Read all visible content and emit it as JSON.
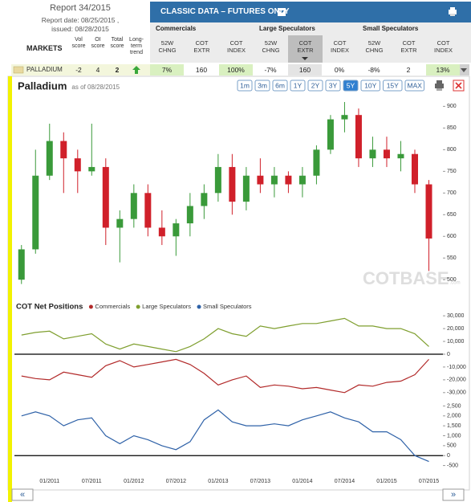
{
  "report": {
    "title": "Report 34/2015",
    "date": "Report date: 08/25/2015 ,",
    "issued": "issued: 08/28/2015"
  },
  "header": {
    "title": "CLASSIC DATA – FUTURES ONLY"
  },
  "table": {
    "markets_label": "MARKETS",
    "score_columns": [
      "Vol score",
      "OI score",
      "Total score",
      "Long-term trend"
    ],
    "groups": [
      {
        "name": "Commercials",
        "columns": [
          "52W CHNG",
          "COT EXTR",
          "COT INDEX"
        ]
      },
      {
        "name": "Large Speculators",
        "columns": [
          "52W CHNG",
          "COT EXTR",
          "COT INDEX"
        ]
      },
      {
        "name": "Small Speculators",
        "columns": [
          "52W CHNG",
          "COT EXTR",
          "COT INDEX"
        ]
      }
    ],
    "row": {
      "market": "PALLADIUM",
      "scores": [
        -2,
        4,
        2
      ],
      "values": [
        "7%",
        "160",
        "100%",
        "-7%",
        "160",
        "0%",
        "-8%",
        "2",
        "13%"
      ],
      "cell_colors": [
        "#d9f0c0",
        "#ffffff",
        "#d9f0c0",
        "#ffffff",
        "#e4e4e4",
        "#ffffff",
        "#ffffff",
        "#ffffff",
        "#d9f0c0"
      ]
    }
  },
  "chart_panel": {
    "title": "Palladium",
    "subtitle": "as of 08/28/2015",
    "ranges": [
      "1m",
      "3m",
      "6m",
      "1Y",
      "2Y",
      "3Y",
      "5Y",
      "10Y",
      "15Y",
      "MAX"
    ],
    "active_range": "5Y",
    "watermark": "COTBASE",
    "watermark_suffix": ".com"
  },
  "footer": {
    "prev": "«",
    "next": "»"
  },
  "chart_data": [
    {
      "type": "candlestick",
      "x": [
        "09/2010",
        "11/2010",
        "01/2011",
        "03/2011",
        "05/2011",
        "07/2011",
        "09/2011",
        "11/2011",
        "01/2012",
        "03/2012",
        "05/2012",
        "07/2012",
        "09/2012",
        "11/2012",
        "01/2013",
        "03/2013",
        "05/2013",
        "07/2013",
        "09/2013",
        "11/2013",
        "01/2014",
        "03/2014",
        "05/2014",
        "07/2014",
        "09/2014",
        "11/2014",
        "01/2015",
        "03/2015",
        "05/2015",
        "07/2015"
      ],
      "open": [
        500,
        570,
        740,
        820,
        780,
        750,
        760,
        620,
        640,
        700,
        620,
        600,
        630,
        670,
        700,
        760,
        680,
        740,
        720,
        740,
        720,
        740,
        800,
        870,
        880,
        780,
        800,
        780,
        790,
        720
      ],
      "high": [
        580,
        800,
        860,
        840,
        800,
        860,
        780,
        660,
        720,
        720,
        660,
        640,
        700,
        720,
        790,
        790,
        760,
        780,
        760,
        750,
        760,
        810,
        880,
        910,
        895,
        830,
        830,
        820,
        800,
        730
      ],
      "low": [
        490,
        560,
        730,
        700,
        700,
        740,
        580,
        540,
        620,
        600,
        580,
        555,
        600,
        640,
        680,
        650,
        660,
        700,
        690,
        700,
        690,
        720,
        790,
        840,
        760,
        760,
        760,
        750,
        700,
        520
      ],
      "close": [
        570,
        740,
        820,
        780,
        750,
        760,
        620,
        640,
        700,
        620,
        600,
        630,
        670,
        700,
        760,
        680,
        740,
        720,
        740,
        720,
        740,
        800,
        870,
        880,
        780,
        800,
        780,
        790,
        720,
        595
      ],
      "up_color": "#3a9a3a",
      "down_color": "#d0202a",
      "xlim": [
        "08/2010",
        "09/2015"
      ],
      "ylim": [
        480,
        910
      ],
      "yticks": [
        500,
        550,
        600,
        650,
        700,
        750,
        800,
        850,
        900
      ]
    },
    {
      "type": "line",
      "title": "COT Net Positions",
      "x": [
        "09/2010",
        "11/2010",
        "01/2011",
        "03/2011",
        "05/2011",
        "07/2011",
        "09/2011",
        "11/2011",
        "01/2012",
        "03/2012",
        "05/2012",
        "07/2012",
        "09/2012",
        "11/2012",
        "01/2013",
        "03/2013",
        "05/2013",
        "07/2013",
        "09/2013",
        "11/2013",
        "01/2014",
        "03/2014",
        "05/2014",
        "07/2014",
        "09/2014",
        "11/2014",
        "01/2015",
        "03/2015",
        "05/2015",
        "07/2015"
      ],
      "series": [
        {
          "name": "Commercials",
          "color": "#b22a2a",
          "axis": "y",
          "values": [
            -17000,
            -19000,
            -20000,
            -14000,
            -16000,
            -18000,
            -9000,
            -5000,
            -10000,
            -8000,
            -6000,
            -4000,
            -8000,
            -15000,
            -24000,
            -20000,
            -17000,
            -26000,
            -24000,
            -25000,
            -27000,
            -26000,
            -28000,
            -30000,
            -24000,
            -25000,
            -22000,
            -21000,
            -16000,
            -4000
          ]
        },
        {
          "name": "Large Speculators",
          "color": "#7f9f2f",
          "axis": "y",
          "values": [
            15000,
            17000,
            18000,
            12000,
            14000,
            16000,
            8000,
            4000,
            8000,
            6000,
            4000,
            2000,
            6000,
            12000,
            20000,
            16000,
            14000,
            22000,
            20000,
            22000,
            24000,
            24000,
            26000,
            28000,
            22000,
            22000,
            20000,
            20000,
            16000,
            6000
          ]
        },
        {
          "name": "Small Speculators",
          "color": "#2f62a8",
          "axis": "y2",
          "values": [
            2000,
            2200,
            2000,
            1500,
            1800,
            1900,
            1000,
            600,
            1000,
            800,
            500,
            300,
            700,
            1800,
            2300,
            1700,
            1500,
            1500,
            1600,
            1500,
            1800,
            2000,
            2200,
            1900,
            1700,
            1200,
            1200,
            800,
            0,
            -300
          ]
        }
      ],
      "xlim": [
        "08/2010",
        "09/2015"
      ],
      "xticks": [
        "01/2011",
        "07/2011",
        "01/2012",
        "07/2012",
        "01/2013",
        "07/2013",
        "01/2014",
        "07/2014",
        "01/2015",
        "07/2015"
      ],
      "ylim": [
        -32000,
        32000
      ],
      "yticks": [
        {
          "value": 30000,
          "label": "30,000"
        },
        {
          "value": 20000,
          "label": "20,000"
        },
        {
          "value": 10000,
          "label": "10,000"
        },
        0,
        {
          "value": -10000,
          "label": "-10,000"
        },
        {
          "value": -20000,
          "label": "-20,000"
        },
        {
          "value": -30000,
          "label": "-30,000"
        }
      ],
      "y2lim": [
        -800,
        2800
      ],
      "y2ticks": [
        {
          "value": 2500,
          "label": "2,500"
        },
        {
          "value": 2000,
          "label": "2,000"
        },
        {
          "value": 1500,
          "label": "1,500"
        },
        {
          "value": 1000,
          "label": "1,000"
        },
        500,
        0,
        -500
      ]
    }
  ]
}
